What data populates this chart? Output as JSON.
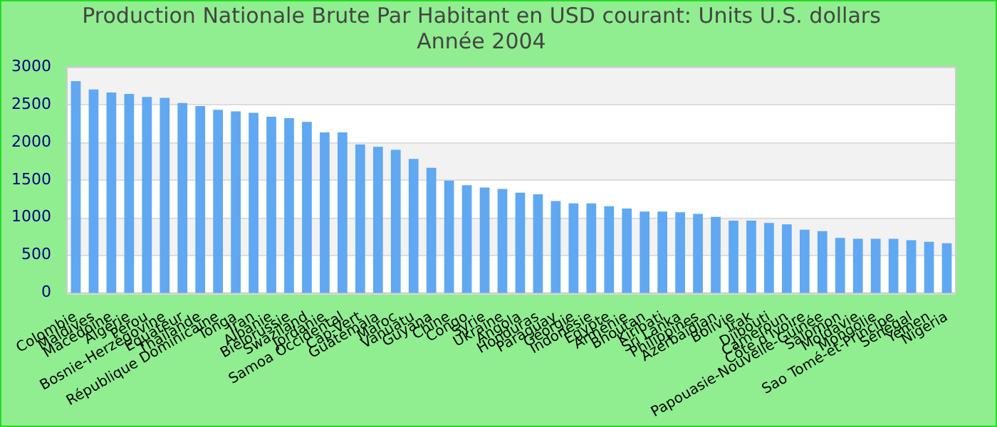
{
  "chart_data": {
    "type": "bar",
    "title": "Production Nationale Brute Par Habitant en USD courant: Units U.S. dollars",
    "subtitle": "Année 2004",
    "categories": [
      "Colombie",
      "Maldives",
      "Macédoine",
      "Algérie",
      "Pérou",
      "Bosnie-Herzégovine",
      "Equateur",
      "Thaïlande",
      "République Dominicaine",
      "Tonga",
      "Iran",
      "Albanie",
      "Biélorussie",
      "Swaziland",
      "Jordanie",
      "Samoa Occidental",
      "Cap-Vert",
      "Guatemala",
      "Maroc",
      "Vanuatu",
      "Guyana",
      "Chine",
      "Congo",
      "Syrie",
      "Ukraine",
      "Angola",
      "Honduras",
      "Paraguay",
      "Géorgie",
      "Indonésie",
      "Egypte",
      "Arménie",
      "Bhoutan",
      "Kiribati",
      "Sri Lanka",
      "Philippines",
      "Azerbaïdjan",
      "Bolivie",
      "Irak",
      "Djibouti",
      "Cameroun",
      "Côte d'Ivoire",
      "Papouasie-Nouvelle-Guinée",
      "Salomon",
      "Moldavie",
      "Mongolie",
      "Sao Tomé-et-Principe",
      "Sénégal",
      "Yémen",
      "Nigeria"
    ],
    "values": [
      2810,
      2700,
      2660,
      2640,
      2600,
      2590,
      2520,
      2480,
      2430,
      2410,
      2390,
      2340,
      2320,
      2270,
      2130,
      2130,
      1970,
      1940,
      1900,
      1780,
      1660,
      1490,
      1430,
      1400,
      1380,
      1330,
      1310,
      1220,
      1190,
      1190,
      1150,
      1120,
      1080,
      1080,
      1070,
      1050,
      1010,
      960,
      960,
      930,
      910,
      840,
      820,
      730,
      720,
      720,
      720,
      700,
      680,
      660
    ],
    "color": "#60a8f2",
    "ylim": [
      0,
      3000
    ],
    "yticks": [
      0,
      500,
      1000,
      1500,
      2000,
      2500,
      3000
    ],
    "grid": "y",
    "legend": false
  }
}
